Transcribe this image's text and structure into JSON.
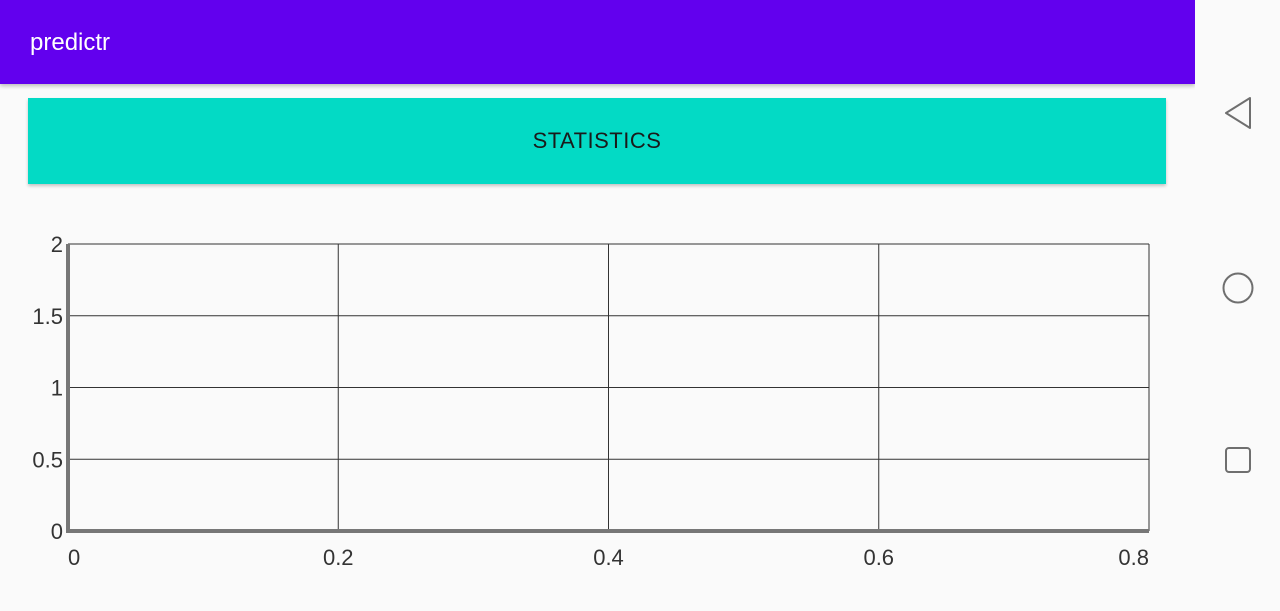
{
  "app": {
    "title": "predictr"
  },
  "main": {
    "statistics_button_label": "STATISTICS"
  },
  "nav": {
    "back_icon": "back-triangle-icon",
    "home_icon": "home-circle-icon",
    "recents_icon": "recents-square-icon"
  },
  "colors": {
    "app_bar": "#6200ee",
    "button": "#03dac5",
    "background": "#fafafa"
  },
  "chart_data": {
    "type": "line",
    "title": "",
    "xlabel": "",
    "ylabel": "",
    "xlim": [
      0,
      0.8
    ],
    "ylim": [
      0,
      2
    ],
    "x_ticks": [
      "0",
      "0.2",
      "0.4",
      "0.6",
      "0.8"
    ],
    "y_ticks": [
      "0",
      "0.5",
      "1",
      "1.5",
      "2"
    ],
    "grid": true,
    "series": []
  }
}
